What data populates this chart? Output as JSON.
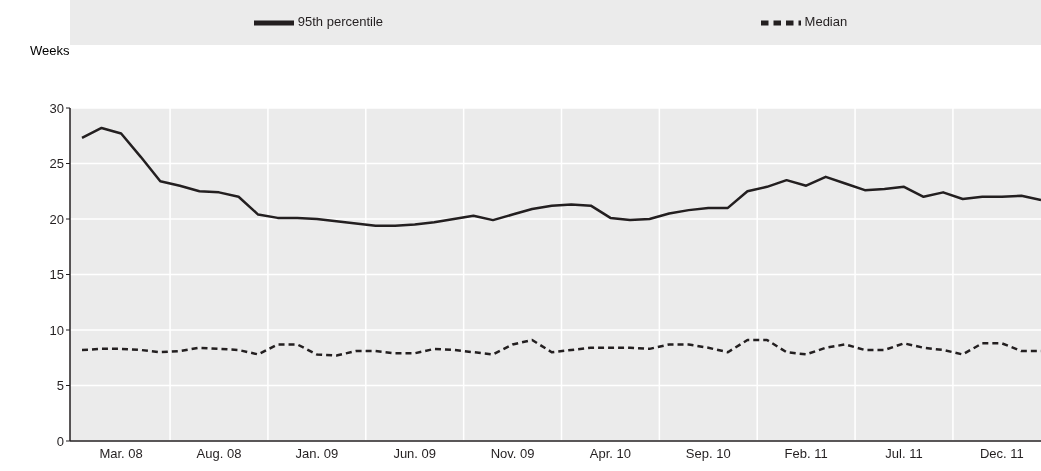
{
  "chart_data": {
    "type": "line",
    "ylabel": "Weeks",
    "categories": [
      null,
      null,
      "Mar. 08",
      null,
      null,
      null,
      null,
      "Aug. 08",
      null,
      null,
      null,
      null,
      "Jan. 09",
      null,
      null,
      null,
      null,
      "Jun. 09",
      null,
      null,
      null,
      null,
      "Nov. 09",
      null,
      null,
      null,
      null,
      "Apr. 10",
      null,
      null,
      null,
      null,
      "Sep. 10",
      null,
      null,
      null,
      null,
      "Feb. 11",
      null,
      null,
      null,
      null,
      "Jul. 11",
      null,
      null,
      null,
      null,
      "Dec. 11",
      null,
      null
    ],
    "series": [
      {
        "name": "95th percentile",
        "color": "#231f20",
        "line_style": "solid",
        "values": [
          27.3,
          28.2,
          27.7,
          25.6,
          23.4,
          23.0,
          22.5,
          22.4,
          22.0,
          20.4,
          20.1,
          20.1,
          20.0,
          19.8,
          19.6,
          19.4,
          19.4,
          19.5,
          19.7,
          20.0,
          20.3,
          19.9,
          20.4,
          20.9,
          21.2,
          21.3,
          21.2,
          20.1,
          19.9,
          20.0,
          20.5,
          20.8,
          21.0,
          21.0,
          22.5,
          22.9,
          23.5,
          23.0,
          23.8,
          23.2,
          22.6,
          22.7,
          22.9,
          22.0,
          22.4,
          21.8,
          22.0,
          22.0,
          22.1,
          21.7
        ]
      },
      {
        "name": "Median",
        "color": "#231f20",
        "line_style": "dashed",
        "values": [
          8.2,
          8.3,
          8.3,
          8.2,
          8.0,
          8.1,
          8.4,
          8.3,
          8.2,
          7.8,
          8.7,
          8.7,
          7.8,
          7.7,
          8.1,
          8.1,
          7.9,
          7.9,
          8.3,
          8.2,
          8.0,
          7.8,
          8.7,
          9.1,
          8.0,
          8.2,
          8.4,
          8.4,
          8.4,
          8.3,
          8.7,
          8.7,
          8.4,
          8.0,
          9.1,
          9.1,
          8.0,
          7.8,
          8.4,
          8.7,
          8.2,
          8.2,
          8.8,
          8.4,
          8.2,
          7.8,
          8.8,
          8.8,
          8.1,
          8.1
        ]
      }
    ],
    "ylim": [
      0,
      30
    ],
    "yticks": [
      0,
      5,
      10,
      15,
      20,
      25,
      30
    ],
    "grid": true,
    "legend": "top"
  }
}
